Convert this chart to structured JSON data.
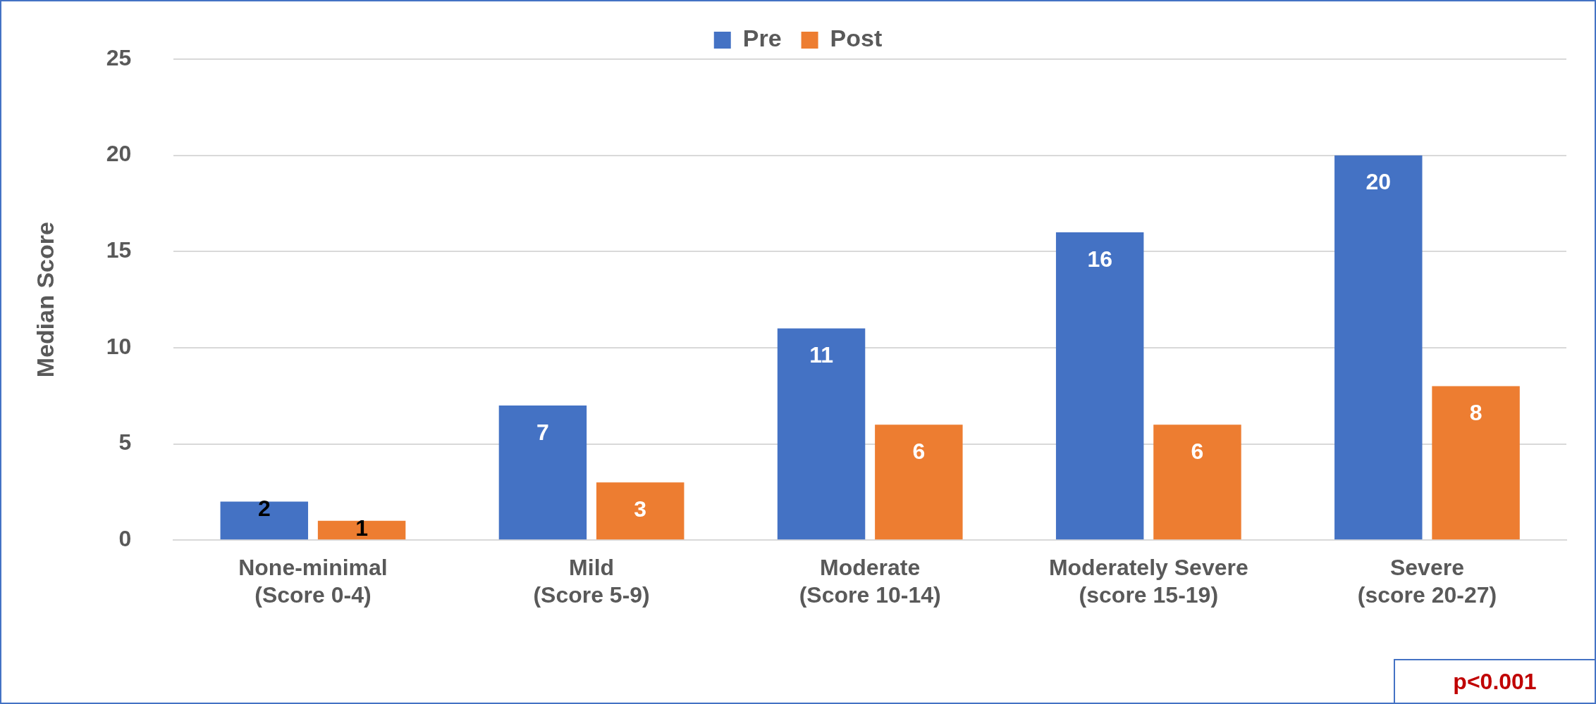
{
  "chart_data": {
    "type": "bar",
    "ylabel": "Median Score",
    "categories": [
      "None-minimal (Score 0-4)",
      "Mild (Score 5-9)",
      "Moderate (Score 10-14)",
      "Moderately Severe (score 15-19)",
      "Severe (score 20-27)"
    ],
    "series": [
      {
        "name": "Pre",
        "color": "#4472c4",
        "values": [
          2,
          7,
          11,
          16,
          20
        ]
      },
      {
        "name": "Post",
        "color": "#ed7d31",
        "values": [
          1,
          3,
          6,
          6,
          8
        ]
      }
    ],
    "ylim": [
      0,
      25
    ],
    "yticks": [
      0,
      5,
      10,
      15,
      20,
      25
    ],
    "grid": "y",
    "legend": "top",
    "data_labels": true,
    "annotations": [
      "p<0.001"
    ]
  }
}
